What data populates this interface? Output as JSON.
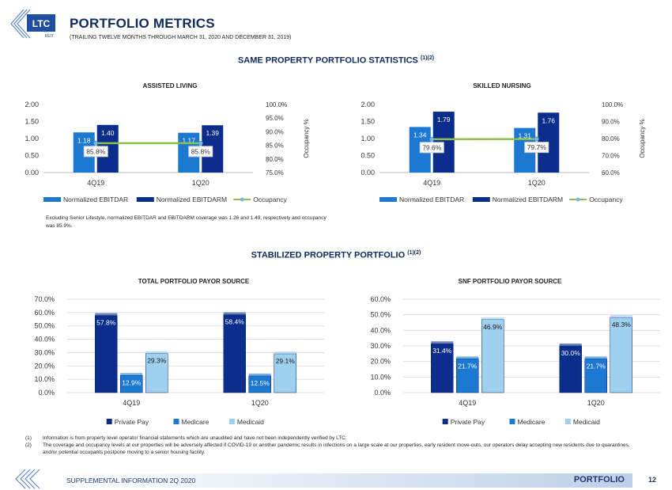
{
  "header": {
    "logo_text": "LTC",
    "logo_subtext": "REIT",
    "title": "PORTFOLIO METRICS",
    "subtitle": "(TRAILING TWELVE MONTHS THROUGH MARCH 31, 2020 AND DECEMBER 31, 2019)"
  },
  "sections": {
    "same_property": {
      "label": "SAME PROPERTY PORTFOLIO STATISTICS",
      "sup": "(1)(2)"
    },
    "stabilized": {
      "label": "STABILIZED PROPERTY PORTFOLIO",
      "sup": "(1)(2)"
    }
  },
  "note": "Excluding Senior Lifestyle, normalized EBITDAR and EBITDARM coverage was 1.26 and 1.49, respectively and occupancy was 85.9%.",
  "footnotes": [
    {
      "num": "(1)",
      "text": "Information is from property level operator financial statements which are unaudited and have not been independently verified by LTC."
    },
    {
      "num": "(2)",
      "text": "The coverage and occupancy levels at our properties will be adversely affected if COVID-19 or another pandemic results in infections on a large scale at our properties, early resident move-outs, our operators delay accepting new residents due to quarantines, and/or potential occupants postpone moving to a senior housing facility."
    }
  ],
  "footer": {
    "left": "SUPPLEMENTAL INFORMATION 2Q 2020",
    "right": "PORTFOLIO",
    "page": "12"
  },
  "colors": {
    "navy": "#0f2a5c",
    "dark_blue": "#0b2d8c",
    "mid_blue": "#1c78d0",
    "light_blue": "#9fd0f0",
    "occupancy_line": "#8fbf4a"
  },
  "chart_data": [
    {
      "id": "assisted",
      "type": "bar",
      "title": "ASSISTED LIVING",
      "categories": [
        "4Q19",
        "1Q20"
      ],
      "series": [
        {
          "name": "Normalized EBITDAR",
          "values": [
            1.18,
            1.17
          ],
          "labels": [
            "1.18",
            "1.17"
          ]
        },
        {
          "name": "Normalized EBITDARM",
          "values": [
            1.4,
            1.39
          ],
          "labels": [
            "1.40",
            "1.39"
          ]
        }
      ],
      "line_series": {
        "name": "Occupancy",
        "values": [
          85.8,
          85.8
        ],
        "labels": [
          "85.8%",
          "85.8%"
        ]
      },
      "ylim": [
        0,
        2
      ],
      "yticks": [
        "0.00",
        "0.50",
        "1.00",
        "1.50",
        "2.00"
      ],
      "y2lim": [
        75,
        100
      ],
      "y2ticks": [
        "75.0%",
        "80.0%",
        "85.0%",
        "90.0%",
        "95.0%",
        "100.0%"
      ],
      "y2label": "Occupancy %",
      "legend": "bottom"
    },
    {
      "id": "skilled",
      "type": "bar",
      "title": "SKILLED NURSING",
      "categories": [
        "4Q19",
        "1Q20"
      ],
      "series": [
        {
          "name": "Normalized EBITDAR",
          "values": [
            1.34,
            1.31
          ],
          "labels": [
            "1.34",
            "1.31"
          ]
        },
        {
          "name": "Normalized EBITDARM",
          "values": [
            1.79,
            1.76
          ],
          "labels": [
            "1.79",
            "1.76"
          ]
        }
      ],
      "line_series": {
        "name": "Occupancy",
        "values": [
          79.6,
          79.7
        ],
        "labels": [
          "79.6%",
          "79.7%"
        ]
      },
      "ylim": [
        0,
        2
      ],
      "yticks": [
        "0.00",
        "0.50",
        "1.00",
        "1.50",
        "2.00"
      ],
      "y2lim": [
        60,
        100
      ],
      "y2ticks": [
        "60.0%",
        "70.0%",
        "80.0%",
        "90.0%",
        "100.0%"
      ],
      "y2label": "Occupancy %",
      "legend": "bottom"
    },
    {
      "id": "total_payor",
      "type": "bar",
      "title": "TOTAL PORTFOLIO PAYOR SOURCE",
      "categories": [
        "4Q19",
        "1Q20"
      ],
      "series": [
        {
          "name": "Private Pay",
          "values": [
            57.8,
            58.4
          ],
          "labels": [
            "57.8%",
            "58.4%"
          ]
        },
        {
          "name": "Medicare",
          "values": [
            12.9,
            12.5
          ],
          "labels": [
            "12.9%",
            "12.5%"
          ]
        },
        {
          "name": "Medicaid",
          "values": [
            29.3,
            29.1
          ],
          "labels": [
            "29.3%",
            "29.1%"
          ]
        }
      ],
      "ylim": [
        0,
        70
      ],
      "yticks": [
        "0.0%",
        "10.0%",
        "20.0%",
        "30.0%",
        "40.0%",
        "50.0%",
        "60.0%",
        "70.0%"
      ],
      "legend": "bottom"
    },
    {
      "id": "snf_payor",
      "type": "bar",
      "title": "SNF PORTFOLIO PAYOR SOURCE",
      "categories": [
        "4Q19",
        "1Q20"
      ],
      "series": [
        {
          "name": "Private Pay",
          "values": [
            31.4,
            30.0
          ],
          "labels": [
            "31.4%",
            "30.0%"
          ]
        },
        {
          "name": "Medicare",
          "values": [
            21.7,
            21.7
          ],
          "labels": [
            "21.7%",
            "21.7%"
          ]
        },
        {
          "name": "Medicaid",
          "values": [
            46.9,
            48.3
          ],
          "labels": [
            "46.9%",
            "48.3%"
          ]
        }
      ],
      "ylim": [
        0,
        60
      ],
      "yticks": [
        "0.0%",
        "10.0%",
        "20.0%",
        "30.0%",
        "40.0%",
        "50.0%",
        "60.0%"
      ],
      "legend": "bottom"
    }
  ]
}
